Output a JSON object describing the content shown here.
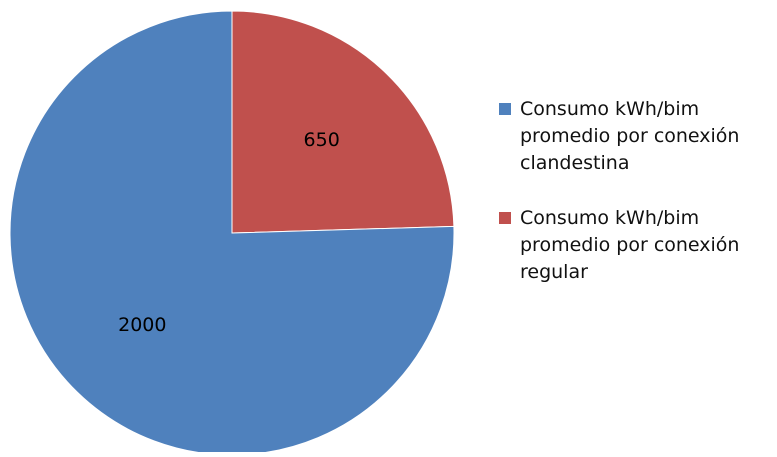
{
  "chart_data": {
    "type": "pie",
    "title": "",
    "legend_position": "right",
    "start_angle_deg": 0,
    "slices": [
      {
        "label": "Consumo kWh/bim promedio por conexión regular",
        "value": 650,
        "color": "#C0504D"
      },
      {
        "label": "Consumo kWh/bim promedio por conexión clandestina",
        "value": 2000,
        "color": "#4F81BD"
      }
    ],
    "legend": [
      {
        "label": "Consumo kWh/bim promedio por conexión clandestina",
        "color": "#4F81BD"
      },
      {
        "label": "Consumo kWh/bim promedio por conexión regular",
        "color": "#C0504D"
      }
    ]
  }
}
